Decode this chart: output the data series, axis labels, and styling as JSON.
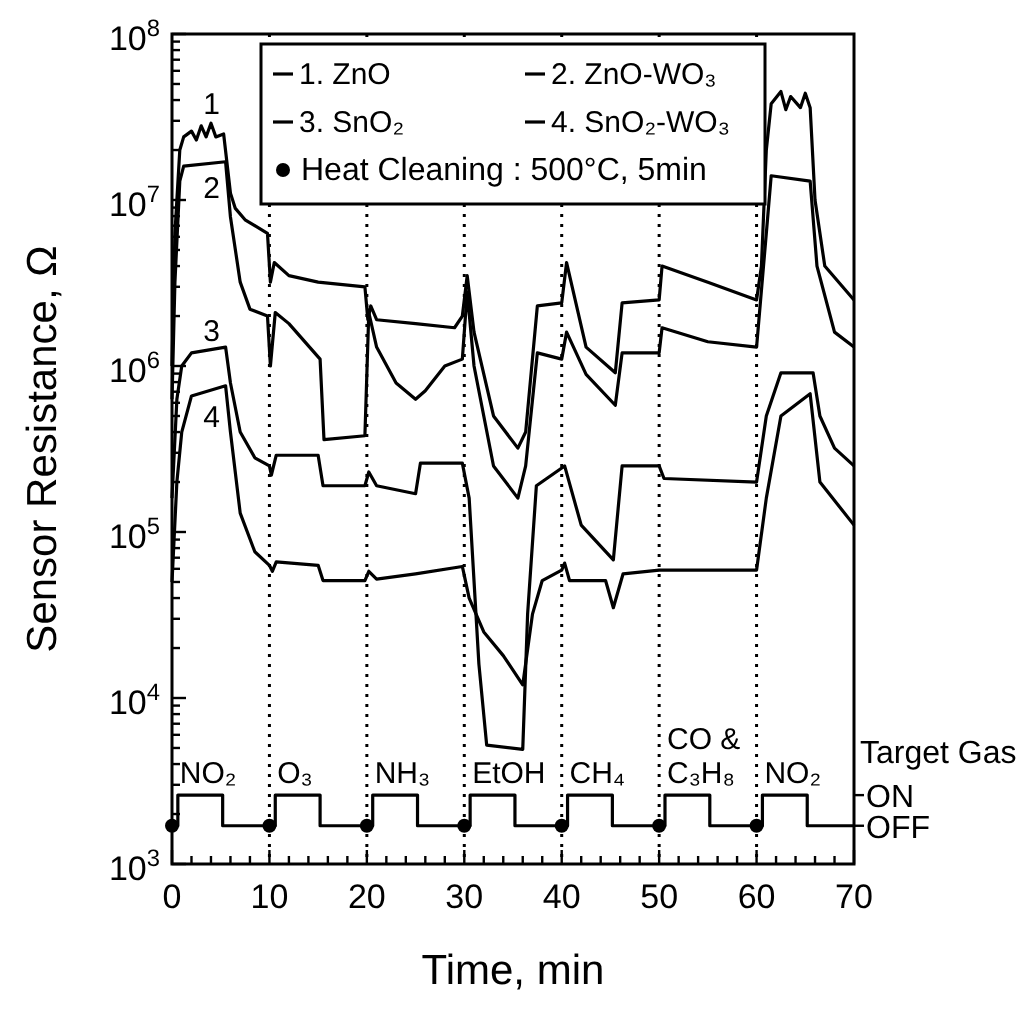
{
  "chart_data": {
    "type": "line",
    "xlabel": "Time, min",
    "ylabel": "Sensor Resistance, Ω",
    "log": "y",
    "legend": "top",
    "grid": false,
    "xlim": [
      0,
      70
    ],
    "ylim": [
      1000,
      100000000
    ],
    "xticks": [
      0,
      {
        "value": 2,
        "label": null
      },
      {
        "value": 4,
        "label": null
      },
      {
        "value": 6,
        "label": null
      },
      {
        "value": 8,
        "label": null
      },
      10,
      {
        "value": 12,
        "label": null
      },
      {
        "value": 14,
        "label": null
      },
      {
        "value": 16,
        "label": null
      },
      {
        "value": 18,
        "label": null
      },
      20,
      {
        "value": 22,
        "label": null
      },
      {
        "value": 24,
        "label": null
      },
      {
        "value": 26,
        "label": null
      },
      {
        "value": 28,
        "label": null
      },
      30,
      {
        "value": 32,
        "label": null
      },
      {
        "value": 34,
        "label": null
      },
      {
        "value": 36,
        "label": null
      },
      {
        "value": 38,
        "label": null
      },
      40,
      {
        "value": 42,
        "label": null
      },
      {
        "value": 44,
        "label": null
      },
      {
        "value": 46,
        "label": null
      },
      {
        "value": 48,
        "label": null
      },
      50,
      {
        "value": 52,
        "label": null
      },
      {
        "value": 54,
        "label": null
      },
      {
        "value": 56,
        "label": null
      },
      {
        "value": 58,
        "label": null
      },
      60,
      {
        "value": 62,
        "label": null
      },
      {
        "value": 64,
        "label": null
      },
      {
        "value": 66,
        "label": null
      },
      {
        "value": 68,
        "label": null
      },
      70
    ],
    "yticks": [
      {
        "value": 1000,
        "label": "10$^{3}$"
      },
      {
        "value": 2000,
        "label": null
      },
      {
        "value": 3000,
        "label": null
      },
      {
        "value": 4000,
        "label": null
      },
      {
        "value": 5000,
        "label": null
      },
      {
        "value": 6000,
        "label": null
      },
      {
        "value": 7000,
        "label": null
      },
      {
        "value": 8000,
        "label": null
      },
      {
        "value": 9000,
        "label": null
      },
      {
        "value": 10000,
        "label": "10$^{4}$"
      },
      {
        "value": 20000,
        "label": null
      },
      {
        "value": 30000,
        "label": null
      },
      {
        "value": 40000,
        "label": null
      },
      {
        "value": 50000,
        "label": null
      },
      {
        "value": 60000,
        "label": null
      },
      {
        "value": 70000,
        "label": null
      },
      {
        "value": 80000,
        "label": null
      },
      {
        "value": 90000,
        "label": null
      },
      {
        "value": 100000,
        "label": "10$^{5}$"
      },
      {
        "value": 200000,
        "label": null
      },
      {
        "value": 300000,
        "label": null
      },
      {
        "value": 400000,
        "label": null
      },
      {
        "value": 500000,
        "label": null
      },
      {
        "value": 600000,
        "label": null
      },
      {
        "value": 700000,
        "label": null
      },
      {
        "value": 800000,
        "label": null
      },
      {
        "value": 900000,
        "label": null
      },
      {
        "value": 1000000,
        "label": "10$^{6}$"
      },
      {
        "value": 2000000,
        "label": null
      },
      {
        "value": 3000000,
        "label": null
      },
      {
        "value": 4000000,
        "label": null
      },
      {
        "value": 5000000,
        "label": null
      },
      {
        "value": 6000000,
        "label": null
      },
      {
        "value": 7000000,
        "label": null
      },
      {
        "value": 8000000,
        "label": null
      },
      {
        "value": 9000000,
        "label": null
      },
      {
        "value": 10000000,
        "label": "10$^{7}$"
      },
      {
        "value": 20000000,
        "label": null
      },
      {
        "value": 30000000,
        "label": null
      },
      {
        "value": 40000000,
        "label": null
      },
      {
        "value": 50000000,
        "label": null
      },
      {
        "value": 60000000,
        "label": null
      },
      {
        "value": 70000000,
        "label": null
      },
      {
        "value": 80000000,
        "label": null
      },
      {
        "value": 90000000,
        "label": null
      },
      {
        "value": 100000000,
        "label": "10$^{8}$"
      }
    ],
    "ref_lines": [
      {
        "axis": "x",
        "value": 10,
        "line_style": "dotted"
      },
      {
        "axis": "x",
        "value": 20,
        "line_style": "dotted"
      },
      {
        "axis": "x",
        "value": 30,
        "line_style": "dotted"
      },
      {
        "axis": "x",
        "value": 40,
        "line_style": "dotted"
      },
      {
        "axis": "x",
        "value": 50,
        "line_style": "dotted"
      },
      {
        "axis": "x",
        "value": 60,
        "line_style": "dotted"
      }
    ],
    "series": [
      {
        "name": "1. ZnO",
        "color": "#000000",
        "x": [
          0,
          0.3,
          0.8,
          1.2,
          2,
          2.5,
          3,
          3.5,
          4,
          4.5,
          5.3,
          6,
          6.5,
          7.5,
          9.8,
          10.1,
          10.5,
          12,
          15,
          19.8,
          20.1,
          20.4,
          21,
          25,
          29,
          29.8,
          30.3,
          31,
          33,
          35.5,
          36.3,
          37.5,
          40,
          40.5,
          42.5,
          45.5,
          46.2,
          50,
          50.3,
          55,
          60,
          60.5,
          61,
          61.5,
          62.5,
          63,
          63.5,
          64.5,
          65,
          65.5,
          66,
          67,
          70
        ],
        "values": [
          1000000.0,
          6300000.0,
          20000000.0,
          24000000.0,
          26000000.0,
          23000000.0,
          28000000.0,
          24000000.0,
          29000000.0,
          24000000.0,
          25000000.0,
          11000000.0,
          8900000.0,
          7600000.0,
          6300000.0,
          3200000.0,
          4200000.0,
          3500000.0,
          3200000.0,
          3000000.0,
          1900000.0,
          2300000.0,
          1900000.0,
          1800000.0,
          1700000.0,
          2000000.0,
          3500000.0,
          1600000.0,
          500000.0,
          320000.0,
          400000.0,
          2300000.0,
          2400000.0,
          4200000.0,
          1300000.0,
          910000.0,
          2400000.0,
          2500000.0,
          4000000.0,
          3200000.0,
          2500000.0,
          4000000.0,
          20000000.0,
          38000000.0,
          45000000.0,
          35000000.0,
          42000000.0,
          36000000.0,
          44000000.0,
          36000000.0,
          10000000.0,
          4000000.0,
          2500000.0
        ]
      },
      {
        "name": "2. ZnO-WO₃",
        "color": "#000000",
        "x": [
          0,
          0.3,
          0.8,
          1.2,
          5.5,
          6,
          7,
          8,
          9.8,
          10.1,
          10.6,
          12,
          15.2,
          15.6,
          19.8,
          20.2,
          21,
          23,
          25,
          26,
          28,
          29.8,
          30.3,
          31,
          33,
          35.5,
          36.3,
          37.5,
          40,
          40.5,
          42.5,
          45.5,
          46.2,
          50,
          50.3,
          55,
          60,
          61,
          61.5,
          65.5,
          66.2,
          68,
          70
        ],
        "values": [
          630000.0,
          3200000.0,
          13000000.0,
          16000000.0,
          17000000.0,
          7900000.0,
          3200000.0,
          2200000.0,
          2000000.0,
          1000000.0,
          2100000.0,
          1800000.0,
          1100000.0,
          360000.0,
          380000.0,
          2100000.0,
          1300000.0,
          790000.0,
          630000.0,
          710000.0,
          1000000.0,
          1100000.0,
          2800000.0,
          1000000.0,
          250000.0,
          160000.0,
          250000.0,
          1200000.0,
          1100000.0,
          1600000.0,
          890000.0,
          580000.0,
          1200000.0,
          1200000.0,
          1700000.0,
          1400000.0,
          1300000.0,
          6300000.0,
          14000000.0,
          13000000.0,
          4000000.0,
          1600000.0,
          1300000.0
        ]
      },
      {
        "name": "3. SnO₂",
        "color": "#000000",
        "x": [
          0,
          0.5,
          1,
          2,
          5.5,
          6,
          7,
          8.5,
          10,
          10.2,
          10.7,
          15,
          15.5,
          19.8,
          20.2,
          21,
          25,
          25.5,
          29.8,
          30.5,
          31.5,
          32.3,
          36,
          36.5,
          37.4,
          40.3,
          42,
          45.3,
          46.2,
          50,
          50.5,
          60,
          61,
          62.5,
          65.8,
          66.5,
          68,
          70
        ],
        "values": [
          160000.0,
          630000.0,
          1000000.0,
          1200000.0,
          1300000.0,
          790000.0,
          400000.0,
          280000.0,
          250000.0,
          220000.0,
          290000.0,
          290000.0,
          190000.0,
          190000.0,
          230000.0,
          190000.0,
          170000.0,
          260000.0,
          260000.0,
          160000.0,
          16000.0,
          5200.0,
          4900.0,
          32000.0,
          190000.0,
          250000.0,
          110000.0,
          68000.0,
          250000.0,
          250000.0,
          210000.0,
          200000.0,
          500000.0,
          910000.0,
          910000.0,
          500000.0,
          320000.0,
          250000.0
        ]
      },
      {
        "name": "4. SnO₂-WO₃",
        "color": "#000000",
        "x": [
          0,
          0.5,
          1,
          2,
          5.5,
          6,
          7,
          8.5,
          10,
          10.3,
          10.7,
          15,
          15.5,
          19.8,
          20.2,
          21,
          25,
          29.8,
          30.5,
          32,
          34,
          36,
          37,
          38,
          40,
          40.3,
          40.8,
          44.5,
          45.3,
          46.3,
          50,
          60,
          61,
          62.5,
          65.5,
          66.5,
          70
        ],
        "values": [
          50000.0,
          200000.0,
          400000.0,
          660000.0,
          760000.0,
          400000.0,
          130000.0,
          76000.0,
          63000.0,
          58000.0,
          66000.0,
          63000.0,
          51000.0,
          51000.0,
          58000.0,
          52000.0,
          56000.0,
          62000.0,
          40000.0,
          25000.0,
          18000.0,
          12000.0,
          32000.0,
          51000.0,
          59000.0,
          65000.0,
          51000.0,
          51000.0,
          35000.0,
          56000.0,
          59000.0,
          59000.0,
          160000.0,
          500000.0,
          680000.0,
          200000.0,
          110000.0
        ]
      },
      {
        "name": "Heat Cleaning : 500°C, 5min",
        "type": "scatter",
        "marker": "circle",
        "color": "#000000",
        "x": [
          0,
          10,
          20,
          30,
          40,
          50,
          60
        ],
        "values": [
          1700,
          1700,
          1700,
          1700,
          1700,
          1700,
          1700
        ]
      },
      {
        "type": "step",
        "color": "#000000",
        "x": [
          0,
          0.6,
          5.2,
          10.6,
          15.2,
          20.6,
          25.2,
          30.6,
          35.2,
          40.6,
          45.2,
          50.6,
          55.2,
          60.6,
          65.2,
          70
        ],
        "values": [
          1700,
          2600,
          1700,
          2600,
          1700,
          2600,
          1700,
          2600,
          1700,
          2600,
          1700,
          2600,
          1700,
          2600,
          1700,
          1700
        ]
      }
    ],
    "annotations": [
      {
        "text": "1",
        "x": 3,
        "y": 28000000
      },
      {
        "text": "2",
        "x": 3,
        "y": 16500000
      },
      {
        "text": "3",
        "x": 3,
        "y": 1200000
      },
      {
        "text": "4",
        "x": 3,
        "y": 690000
      },
      {
        "text": "NO₂",
        "x": 0.6,
        "y": 2600
      },
      {
        "text": "O₃",
        "x": 10.6,
        "y": 2600
      },
      {
        "text": "NH₃",
        "x": 20.6,
        "y": 2600
      },
      {
        "text": "EtOH",
        "x": 30.6,
        "y": 2600
      },
      {
        "text": "CH₄",
        "x": 40.6,
        "y": 2600
      },
      {
        "text": "CO &\nC₃H₈",
        "x": 50.6,
        "y": 2600
      },
      {
        "text": "NO₂",
        "x": 60.6,
        "y": 2600
      },
      "Target Gas",
      "ON",
      "OFF"
    ]
  }
}
